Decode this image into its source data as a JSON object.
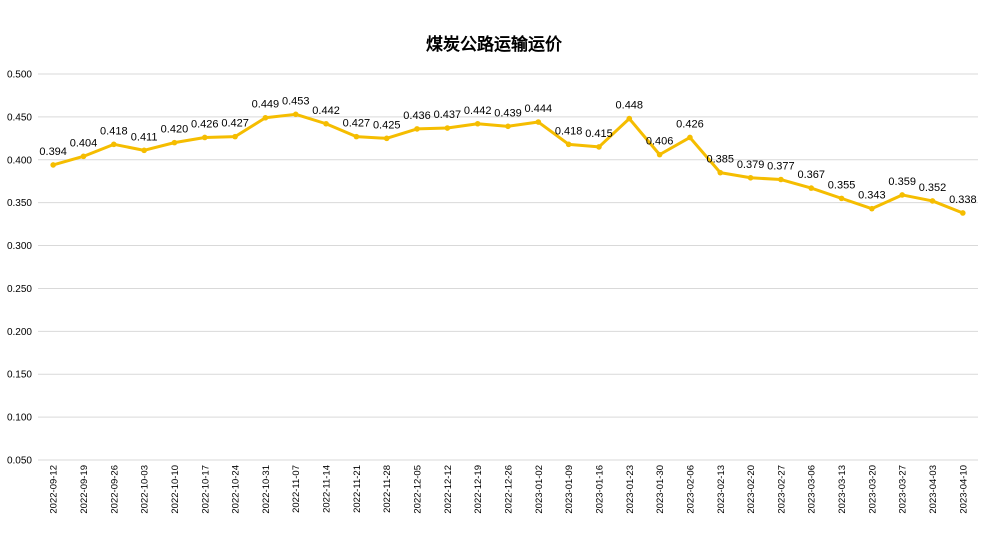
{
  "chart_data": {
    "type": "line",
    "title": "煤炭公路运输运价",
    "xlabel": "",
    "ylabel": "",
    "ylim": [
      0.05,
      0.5
    ],
    "yticks": [
      "0.050",
      "0.100",
      "0.150",
      "0.200",
      "0.250",
      "0.300",
      "0.350",
      "0.400",
      "0.450",
      "0.500"
    ],
    "grid": true,
    "legend": "none",
    "color": "#F5BD00",
    "categories": [
      "2022-09-12",
      "2022-09-19",
      "2022-09-26",
      "2022-10-03",
      "2022-10-10",
      "2022-10-17",
      "2022-10-24",
      "2022-10-31",
      "2022-11-07",
      "2022-11-14",
      "2022-11-21",
      "2022-11-28",
      "2022-12-05",
      "2022-12-12",
      "2022-12-19",
      "2022-12-26",
      "2023-01-02",
      "2023-01-09",
      "2023-01-16",
      "2023-01-23",
      "2023-01-30",
      "2023-02-06",
      "2023-02-13",
      "2023-02-20",
      "2023-02-27",
      "2023-03-06",
      "2023-03-13",
      "2023-03-20",
      "2023-03-27",
      "2023-04-03",
      "2023-04-10"
    ],
    "values": [
      0.394,
      0.404,
      0.418,
      0.411,
      0.42,
      0.426,
      0.427,
      0.449,
      0.453,
      0.442,
      0.427,
      0.425,
      0.436,
      0.437,
      0.442,
      0.439,
      0.444,
      0.418,
      0.415,
      0.448,
      0.406,
      0.426,
      0.385,
      0.379,
      0.377,
      0.367,
      0.355,
      0.343,
      0.359,
      0.352,
      0.338
    ],
    "data_labels": [
      "0.394",
      "0.404",
      "0.418",
      "0.411",
      "0.420",
      "0.426",
      "0.427",
      "0.449",
      "0.453",
      "0.442",
      "0.427",
      "0.425",
      "0.436",
      "0.437",
      "0.442",
      "0.439",
      "0.444",
      "0.418",
      "0.415",
      "0.448",
      "0.406",
      "0.426",
      "0.385",
      "0.379",
      "0.377",
      "0.367",
      "0.355",
      "0.343",
      "0.359",
      "0.352",
      "0.338"
    ]
  }
}
